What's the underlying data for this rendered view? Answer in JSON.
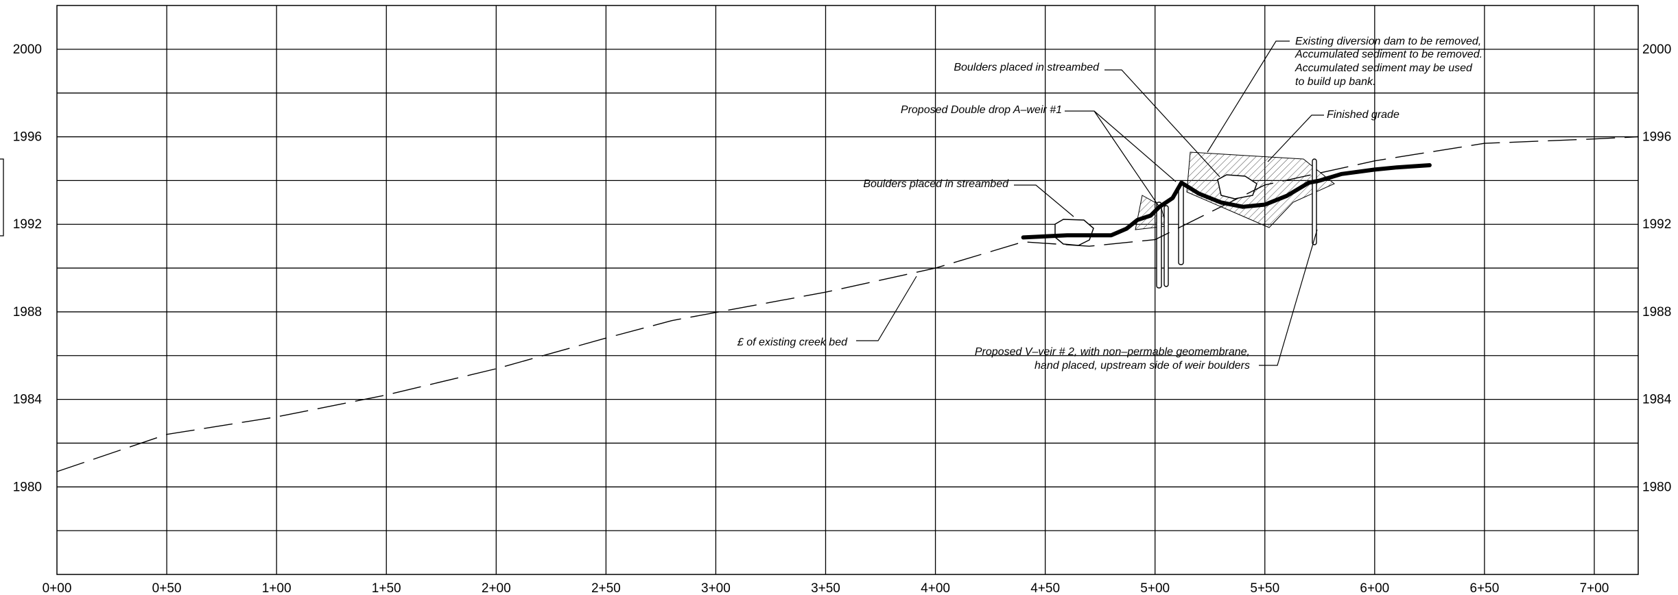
{
  "chart_data": {
    "type": "line",
    "title": "",
    "xlabel": "",
    "ylabel": "",
    "xlim": [
      0,
      720
    ],
    "ylim": [
      1976,
      2002
    ],
    "grid": true,
    "x_tick_labels": [
      "0+00",
      "0+50",
      "1+00",
      "1+50",
      "2+00",
      "2+50",
      "3+00",
      "3+50",
      "4+00",
      "4+50",
      "5+00",
      "5+50",
      "6+00",
      "6+50",
      "7+00"
    ],
    "y_tick_values": [
      1980,
      1984,
      1988,
      1992,
      1996,
      2000
    ],
    "y_tick_labels": [
      "1980",
      "1984",
      "1988",
      "1992",
      "1996",
      "2000"
    ],
    "series": [
      {
        "style": "dashed",
        "x": [
          0,
          50,
          100,
          150,
          200,
          250,
          280,
          350,
          400,
          440,
          470,
          500,
          550,
          600,
          650,
          700,
          720
        ],
        "y": [
          1980.7,
          1982.4,
          1983.2,
          1984.2,
          1985.4,
          1986.8,
          1987.6,
          1988.9,
          1990.0,
          1991.2,
          1991.0,
          1991.3,
          1993.8,
          1994.9,
          1995.7,
          1995.9,
          1996.0
        ]
      },
      {
        "style": "heavy",
        "x": [
          440,
          460,
          480,
          487,
          492,
          498,
          502,
          508,
          512,
          520,
          530,
          540,
          550,
          560,
          570,
          575,
          585,
          600,
          610,
          625
        ],
        "y": [
          1991.4,
          1991.5,
          1991.5,
          1991.8,
          1992.2,
          1992.4,
          1992.8,
          1993.2,
          1993.9,
          1993.4,
          1993.0,
          1992.8,
          1992.9,
          1993.3,
          1993.9,
          1994.0,
          1994.3,
          1994.5,
          1994.6,
          1994.7
        ]
      }
    ],
    "annotations": [
      {
        "text": "Existing diversion dam to be removed,",
        "line": 1
      },
      {
        "text": "Accumulated sediment to be removed.",
        "line": 2
      },
      {
        "text": "Accumulated sediment may be used",
        "line": 3
      },
      {
        "text": "to build up bank.",
        "line": 4
      },
      {
        "text": "Boulders placed in streambed"
      },
      {
        "text": "Proposed Double drop A–weir #1"
      },
      {
        "text": "Finished grade"
      },
      {
        "text": "Boulders placed in streambed"
      },
      {
        "text": "£ of existing creek bed"
      },
      {
        "text": "Proposed V–veir # 2, with non–permable geomembrane,"
      },
      {
        "text": "hand placed, upstream side of weir boulders"
      }
    ]
  }
}
